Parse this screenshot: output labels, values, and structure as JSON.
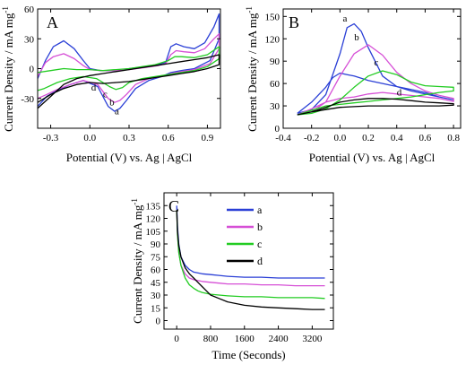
{
  "colors": {
    "a": "#2a3fd6",
    "b": "#d64fd6",
    "c": "#22cc22",
    "d": "#000000"
  },
  "chart_data": [
    {
      "panel": "A",
      "type": "line",
      "xlabel": "Potential (V) vs. Ag | AgCl",
      "ylabel": "Current Density / mA mg",
      "ylabel_sup": "-1",
      "xlim": [
        -0.4,
        1.0
      ],
      "ylim": [
        -60,
        60
      ],
      "xticks": [
        -0.3,
        0.0,
        0.3,
        0.6,
        0.9
      ],
      "xtick_labels": [
        "-0.3",
        "0.0",
        "0.3",
        "0.6",
        "0.9"
      ],
      "yticks": [
        -30,
        0,
        30,
        60
      ],
      "ytick_labels": [
        "-30",
        "0",
        "30",
        "60"
      ],
      "series": [
        {
          "name": "a",
          "color_key": "a",
          "label_at": [
            0.19,
            -46
          ],
          "x": [
            -0.4,
            -0.34,
            -0.28,
            -0.2,
            -0.12,
            -0.05,
            0.0,
            0.08,
            0.18,
            0.3,
            0.42,
            0.52,
            0.58,
            0.62,
            0.66,
            0.72,
            0.8,
            0.88,
            0.95,
            0.99,
            0.99,
            0.92,
            0.8,
            0.7,
            0.62,
            0.55,
            0.45,
            0.35,
            0.28,
            0.23,
            0.19,
            0.14,
            0.06,
            -0.05,
            -0.15,
            -0.25,
            -0.33,
            -0.4
          ],
          "y": [
            -10,
            8,
            22,
            28,
            20,
            8,
            0,
            -2,
            -2,
            0,
            2,
            4,
            6,
            22,
            25,
            22,
            20,
            26,
            42,
            55,
            30,
            8,
            0,
            -2,
            -4,
            -8,
            -12,
            -20,
            -32,
            -40,
            -43,
            -38,
            -18,
            -12,
            -16,
            -22,
            -28,
            -38
          ]
        },
        {
          "name": "b",
          "color_key": "b",
          "label_at": [
            0.15,
            -37
          ],
          "x": [
            -0.4,
            -0.34,
            -0.28,
            -0.2,
            -0.12,
            -0.05,
            0.0,
            0.08,
            0.18,
            0.3,
            0.42,
            0.52,
            0.58,
            0.62,
            0.66,
            0.72,
            0.8,
            0.88,
            0.95,
            0.99,
            0.99,
            0.92,
            0.8,
            0.7,
            0.62,
            0.55,
            0.45,
            0.35,
            0.28,
            0.23,
            0.19,
            0.14,
            0.06,
            -0.05,
            -0.15,
            -0.25,
            -0.33,
            -0.4
          ],
          "y": [
            -8,
            6,
            12,
            15,
            10,
            3,
            -1,
            -2,
            -2,
            -1,
            1,
            3,
            5,
            14,
            18,
            17,
            16,
            20,
            30,
            35,
            20,
            5,
            -1,
            -3,
            -5,
            -8,
            -10,
            -16,
            -26,
            -32,
            -34,
            -30,
            -16,
            -12,
            -16,
            -21,
            -26,
            -30
          ]
        },
        {
          "name": "c",
          "color_key": "c",
          "label_at": [
            0.1,
            -29
          ],
          "x": [
            -0.4,
            -0.3,
            -0.2,
            -0.1,
            0.0,
            0.1,
            0.2,
            0.3,
            0.4,
            0.5,
            0.6,
            0.65,
            0.7,
            0.8,
            0.9,
            0.99,
            0.99,
            0.9,
            0.8,
            0.7,
            0.6,
            0.5,
            0.4,
            0.3,
            0.25,
            0.2,
            0.15,
            0.05,
            -0.05,
            -0.15,
            -0.25,
            -0.35,
            -0.4
          ],
          "y": [
            -4,
            -2,
            0,
            -1,
            -1,
            -2,
            -1,
            0,
            2,
            4,
            8,
            12,
            12,
            11,
            14,
            22,
            10,
            2,
            -2,
            -4,
            -6,
            -8,
            -10,
            -14,
            -19,
            -21,
            -18,
            -10,
            -8,
            -10,
            -14,
            -20,
            -22
          ]
        },
        {
          "name": "d",
          "color_key": "d",
          "label_at": [
            0.01,
            -22
          ],
          "x": [
            -0.4,
            -0.3,
            -0.2,
            -0.1,
            0.0,
            0.1,
            0.2,
            0.3,
            0.4,
            0.5,
            0.6,
            0.7,
            0.8,
            0.9,
            0.99,
            0.99,
            0.9,
            0.8,
            0.7,
            0.6,
            0.5,
            0.4,
            0.3,
            0.2,
            0.1,
            0.0,
            -0.1,
            -0.2,
            -0.3,
            -0.4
          ],
          "y": [
            -40,
            -28,
            -16,
            -10,
            -7,
            -5,
            -3,
            -1,
            1,
            3,
            5,
            7,
            9,
            11,
            14,
            4,
            0,
            -3,
            -5,
            -7,
            -9,
            -11,
            -13,
            -14,
            -15,
            -14,
            -16,
            -20,
            -26,
            -34
          ]
        }
      ]
    },
    {
      "panel": "B",
      "type": "line",
      "xlabel": "Potential (V) vs. Ag | AgCl",
      "ylabel": "Current Density / mA mg",
      "ylabel_sup": "-1",
      "xlim": [
        -0.4,
        0.85
      ],
      "ylim": [
        0,
        160
      ],
      "xticks": [
        -0.4,
        -0.2,
        0.0,
        0.2,
        0.4,
        0.6,
        0.8
      ],
      "xtick_labels": [
        "-0.4",
        "-0.2",
        "0.0",
        "0.2",
        "0.4",
        "0.6",
        "0.8"
      ],
      "yticks": [
        0,
        30,
        60,
        90,
        120,
        150
      ],
      "ytick_labels": [
        "0",
        "30",
        "60",
        "90",
        "120",
        "150"
      ],
      "series": [
        {
          "name": "a",
          "color_key": "a",
          "label_at": [
            0.02,
            143
          ],
          "x": [
            -0.3,
            -0.2,
            -0.1,
            0.0,
            0.05,
            0.1,
            0.15,
            0.2,
            0.3,
            0.4,
            0.5,
            0.6,
            0.7,
            0.8,
            0.8,
            0.7,
            0.6,
            0.5,
            0.4,
            0.3,
            0.2,
            0.1,
            0.05,
            0.0,
            -0.05,
            -0.1,
            -0.2,
            -0.3
          ],
          "y": [
            20,
            25,
            45,
            100,
            135,
            140,
            130,
            108,
            70,
            56,
            50,
            46,
            42,
            38,
            38,
            42,
            48,
            52,
            56,
            60,
            64,
            70,
            72,
            74,
            68,
            55,
            35,
            20
          ]
        },
        {
          "name": "b",
          "color_key": "b",
          "label_at": [
            0.1,
            118
          ],
          "x": [
            -0.3,
            -0.2,
            -0.1,
            0.0,
            0.1,
            0.2,
            0.3,
            0.4,
            0.5,
            0.6,
            0.7,
            0.8,
            0.8,
            0.7,
            0.6,
            0.5,
            0.4,
            0.3,
            0.2,
            0.1,
            0.0,
            -0.1,
            -0.2,
            -0.3
          ],
          "y": [
            18,
            22,
            35,
            70,
            100,
            112,
            98,
            75,
            60,
            50,
            44,
            40,
            36,
            40,
            42,
            44,
            46,
            48,
            46,
            42,
            40,
            35,
            26,
            18
          ]
        },
        {
          "name": "c",
          "color_key": "c",
          "label_at": [
            0.24,
            84
          ],
          "x": [
            -0.3,
            -0.2,
            -0.1,
            0.0,
            0.1,
            0.2,
            0.3,
            0.4,
            0.5,
            0.6,
            0.7,
            0.8,
            0.8,
            0.7,
            0.6,
            0.5,
            0.4,
            0.3,
            0.2,
            0.1,
            0.0,
            -0.1,
            -0.2,
            -0.3
          ],
          "y": [
            18,
            20,
            26,
            38,
            55,
            70,
            77,
            72,
            62,
            57,
            56,
            55,
            50,
            48,
            45,
            42,
            40,
            38,
            36,
            34,
            32,
            30,
            24,
            18
          ]
        },
        {
          "name": "d",
          "color_key": "d",
          "label_at": [
            0.4,
            44
          ],
          "x": [
            -0.3,
            -0.2,
            -0.1,
            0.0,
            0.1,
            0.2,
            0.3,
            0.4,
            0.5,
            0.6,
            0.7,
            0.8,
            0.8,
            0.7,
            0.6,
            0.5,
            0.4,
            0.3,
            0.2,
            0.1,
            0.0,
            -0.1,
            -0.2,
            -0.3
          ],
          "y": [
            18,
            22,
            28,
            35,
            38,
            40,
            40,
            39,
            37,
            35,
            34,
            33,
            31,
            30,
            30,
            30,
            30,
            30,
            30,
            29,
            28,
            25,
            22,
            18
          ]
        }
      ]
    },
    {
      "panel": "C",
      "type": "line",
      "xlabel": "Time (Seconds)",
      "ylabel": "Current Density / mA mg",
      "ylabel_sup": "-1",
      "xlim": [
        -300,
        3700
      ],
      "ylim": [
        -10,
        150
      ],
      "xticks": [
        0,
        800,
        1600,
        2400,
        3200
      ],
      "xtick_labels": [
        "0",
        "800",
        "1600",
        "2400",
        "3200"
      ],
      "yticks": [
        0,
        15,
        30,
        45,
        60,
        75,
        90,
        105,
        120,
        135
      ],
      "ytick_labels": [
        "0",
        "15",
        "30",
        "45",
        "60",
        "75",
        "90",
        "105",
        "120",
        "135"
      ],
      "legend": [
        "a",
        "b",
        "c",
        "d"
      ],
      "legend_position": "top-right",
      "series": [
        {
          "name": "a",
          "color_key": "a",
          "x": [
            0,
            20,
            50,
            100,
            200,
            300,
            400,
            600,
            800,
            1000,
            1200,
            1600,
            2000,
            2400,
            2800,
            3200,
            3500
          ],
          "y": [
            135,
            110,
            90,
            75,
            65,
            60,
            57,
            55,
            54,
            53,
            52,
            51,
            51,
            50,
            50,
            50,
            50
          ]
        },
        {
          "name": "b",
          "color_key": "b",
          "x": [
            0,
            20,
            50,
            100,
            200,
            300,
            400,
            600,
            800,
            1000,
            1200,
            1600,
            2000,
            2400,
            2800,
            3200,
            3500
          ],
          "y": [
            130,
            100,
            80,
            65,
            55,
            50,
            48,
            46,
            45,
            44,
            43,
            43,
            42,
            42,
            41,
            41,
            41
          ]
        },
        {
          "name": "c",
          "color_key": "c",
          "x": [
            0,
            20,
            50,
            100,
            200,
            300,
            400,
            500,
            600,
            800,
            1000,
            1200,
            1600,
            2000,
            2400,
            2800,
            3200,
            3500
          ],
          "y": [
            130,
            100,
            80,
            65,
            50,
            42,
            38,
            35,
            33,
            31,
            30,
            29,
            28,
            28,
            27,
            27,
            27,
            26
          ]
        },
        {
          "name": "d",
          "color_key": "d",
          "x": [
            0,
            20,
            50,
            100,
            200,
            300,
            400,
            500,
            600,
            700,
            800,
            1000,
            1200,
            1400,
            1600,
            2000,
            2400,
            2800,
            3200,
            3500
          ],
          "y": [
            130,
            105,
            88,
            75,
            62,
            55,
            50,
            45,
            40,
            35,
            30,
            26,
            22,
            20,
            18,
            16,
            15,
            14,
            13,
            13
          ]
        }
      ]
    }
  ]
}
